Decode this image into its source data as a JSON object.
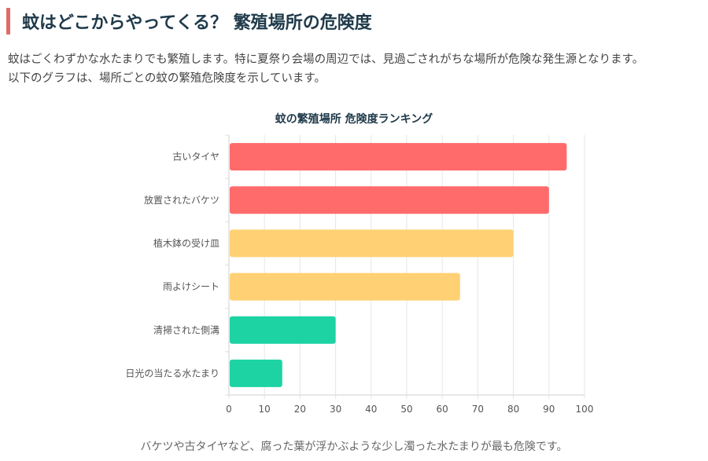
{
  "header": {
    "title": "蚊はどこからやってくる？ 繁殖場所の危険度"
  },
  "intro": {
    "line1": "蚊はごくわずかな水たまりでも繁殖します。特に夏祭り会場の周辺では、見過ごされがちな場所が危険な発生源となります。",
    "line2": "以下のグラフは、場所ごとの蚊の繁殖危険度を示しています。"
  },
  "chart_data": {
    "type": "bar",
    "orientation": "horizontal",
    "title": "蚊の繁殖場所 危険度ランキング",
    "categories": [
      "古いタイヤ",
      "放置されたバケツ",
      "植木鉢の受け皿",
      "雨よけシート",
      "清掃された側溝",
      "日光の当たる水たまり"
    ],
    "values": [
      95,
      90,
      80,
      65,
      30,
      15
    ],
    "colors": [
      "#ff6b6b",
      "#ff6b6b",
      "#ffd174",
      "#ffd174",
      "#1dd3a3",
      "#1dd3a3"
    ],
    "xlim": [
      0,
      100
    ],
    "xticks": [
      0,
      10,
      20,
      30,
      40,
      50,
      60,
      70,
      80,
      90,
      100
    ],
    "grid": true,
    "xlabel": "",
    "ylabel": ""
  },
  "footer": {
    "caption": "バケツや古タイヤなど、腐った葉が浮かぶような少し濁った水たまりが最も危険です。"
  }
}
